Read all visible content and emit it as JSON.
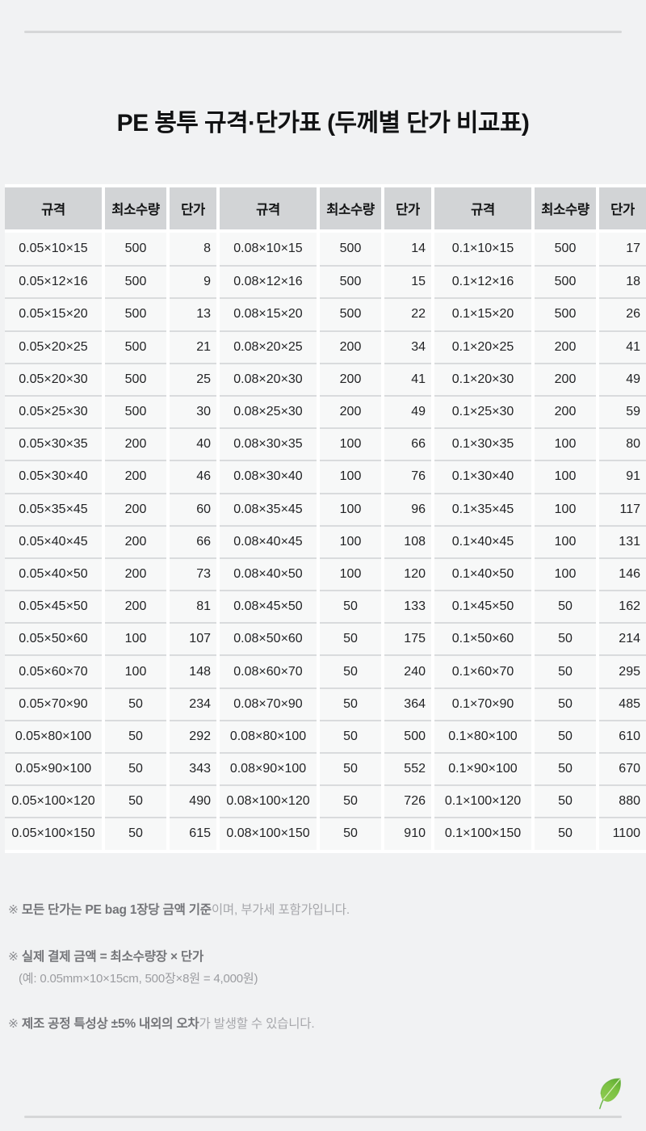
{
  "title": "PE 봉투 규격·단가표 (두께별 단가 비교표)",
  "table": {
    "header": [
      "규격",
      "최소수량",
      "단가",
      "규격",
      "최소수량",
      "단가",
      "규격",
      "최소수량",
      "단가"
    ],
    "column_kinds": [
      "spec",
      "min_qty",
      "unit_price"
    ],
    "rows": [
      [
        "0.05×10×15",
        "500",
        "8",
        "0.08×10×15",
        "500",
        "14",
        "0.1×10×15",
        "500",
        "17"
      ],
      [
        "0.05×12×16",
        "500",
        "9",
        "0.08×12×16",
        "500",
        "15",
        "0.1×12×16",
        "500",
        "18"
      ],
      [
        "0.05×15×20",
        "500",
        "13",
        "0.08×15×20",
        "500",
        "22",
        "0.1×15×20",
        "500",
        "26"
      ],
      [
        "0.05×20×25",
        "500",
        "21",
        "0.08×20×25",
        "200",
        "34",
        "0.1×20×25",
        "200",
        "41"
      ],
      [
        "0.05×20×30",
        "500",
        "25",
        "0.08×20×30",
        "200",
        "41",
        "0.1×20×30",
        "200",
        "49"
      ],
      [
        "0.05×25×30",
        "500",
        "30",
        "0.08×25×30",
        "200",
        "49",
        "0.1×25×30",
        "200",
        "59"
      ],
      [
        "0.05×30×35",
        "200",
        "40",
        "0.08×30×35",
        "100",
        "66",
        "0.1×30×35",
        "100",
        "80"
      ],
      [
        "0.05×30×40",
        "200",
        "46",
        "0.08×30×40",
        "100",
        "76",
        "0.1×30×40",
        "100",
        "91"
      ],
      [
        "0.05×35×45",
        "200",
        "60",
        "0.08×35×45",
        "100",
        "96",
        "0.1×35×45",
        "100",
        "117"
      ],
      [
        "0.05×40×45",
        "200",
        "66",
        "0.08×40×45",
        "100",
        "108",
        "0.1×40×45",
        "100",
        "131"
      ],
      [
        "0.05×40×50",
        "200",
        "73",
        "0.08×40×50",
        "100",
        "120",
        "0.1×40×50",
        "100",
        "146"
      ],
      [
        "0.05×45×50",
        "200",
        "81",
        "0.08×45×50",
        "50",
        "133",
        "0.1×45×50",
        "50",
        "162"
      ],
      [
        "0.05×50×60",
        "100",
        "107",
        "0.08×50×60",
        "50",
        "175",
        "0.1×50×60",
        "50",
        "214"
      ],
      [
        "0.05×60×70",
        "100",
        "148",
        "0.08×60×70",
        "50",
        "240",
        "0.1×60×70",
        "50",
        "295"
      ],
      [
        "0.05×70×90",
        "50",
        "234",
        "0.08×70×90",
        "50",
        "364",
        "0.1×70×90",
        "50",
        "485"
      ],
      [
        "0.05×80×100",
        "50",
        "292",
        "0.08×80×100",
        "50",
        "500",
        "0.1×80×100",
        "50",
        "610"
      ],
      [
        "0.05×90×100",
        "50",
        "343",
        "0.08×90×100",
        "50",
        "552",
        "0.1×90×100",
        "50",
        "670"
      ],
      [
        "0.05×100×120",
        "50",
        "490",
        "0.08×100×120",
        "50",
        "726",
        "0.1×100×120",
        "50",
        "880"
      ],
      [
        "0.05×100×150",
        "50",
        "615",
        "0.08×100×150",
        "50",
        "910",
        "0.1×100×150",
        "50",
        "1100"
      ]
    ]
  },
  "notes": [
    {
      "marker": "※",
      "bold": "모든 단가는 PE bag 1장당 금액 기준",
      "normal": "이며, 부가세 포함가입니다.",
      "sub": ""
    },
    {
      "marker": "※",
      "bold": "실제 결제 금액 = 최소수량장 × 단가",
      "normal": "",
      "sub": "(예: 0.05mm×10×15cm, 500장×8원 = 4,000원)"
    },
    {
      "marker": "※",
      "bold": "제조 공정 특성상 ±5% 내외의 오차",
      "normal": "가 발생할 수 있습니다.",
      "sub": ""
    }
  ],
  "icons": {
    "leaf": "leaf-icon"
  },
  "colors": {
    "page_bg": "#f1f2f3",
    "table_bg": "#ffffff",
    "header_cell_bg": "#d2d4d6",
    "body_cell_bg": "#f7f8f8",
    "row_separator": "#d9dbdd",
    "title_text": "#111213",
    "note_bold_text": "#747579",
    "note_normal_text": "#a6a7ab",
    "divider": "#d6d7d8",
    "leaf_green": "#7cc142",
    "leaf_green_dark": "#57a82e"
  }
}
